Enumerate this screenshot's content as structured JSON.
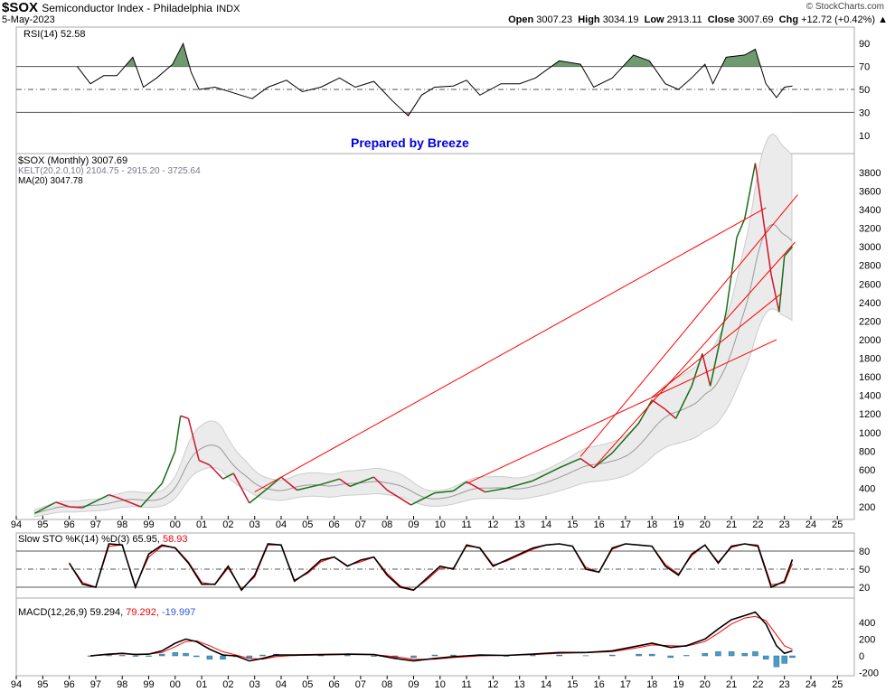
{
  "header": {
    "symbol": "$SOX",
    "name": "Semiconductor Index - Philadelphia",
    "exchange": "INDX",
    "date": "5-May-2023",
    "copyright": "© StockCharts.com",
    "ohlc": {
      "open_label": "Open",
      "open": "3007.23",
      "high_label": "High",
      "high": "3034.19",
      "low_label": "Low",
      "low": "2913.11",
      "close_label": "Close",
      "close": "3007.69",
      "chg_label": "Chg",
      "chg": "+12.72 (+0.42%) ▲"
    }
  },
  "watermark": "Prepared by Breeze",
  "colors": {
    "up": "#1a6e1a",
    "down": "#d0142c",
    "trend": "#ff0000",
    "fill_ob": "#6f9a6f",
    "fill_os": "#b08a8a",
    "band": "#ebebeb",
    "hist": "#4a9cc8"
  },
  "chart_data": [
    {
      "type": "line",
      "panel": "rsi",
      "legend": "RSI(14) 52.58",
      "ylim": [
        0,
        100
      ],
      "yticks": [
        90,
        70,
        50,
        30,
        10
      ],
      "levels": [
        70,
        50,
        30
      ],
      "x": [
        1996.3,
        1996.8,
        1997.3,
        1997.8,
        1998.4,
        1998.8,
        1999.3,
        1999.9,
        2000.3,
        2000.6,
        2000.9,
        2001.5,
        2002.2,
        2002.9,
        2003.5,
        2004.2,
        2004.8,
        2005.5,
        2006.2,
        2006.8,
        2007.5,
        2008.2,
        2008.8,
        2009.3,
        2009.8,
        2010.5,
        2011.0,
        2011.5,
        2012.3,
        2013.0,
        2013.6,
        2014.5,
        2015.3,
        2015.8,
        2016.5,
        2017.3,
        2017.9,
        2018.5,
        2019.0,
        2019.5,
        2020.0,
        2020.3,
        2020.8,
        2021.5,
        2021.9,
        2022.3,
        2022.7,
        2023.0,
        2023.3
      ],
      "y": [
        70,
        55,
        62,
        62,
        78,
        52,
        60,
        72,
        90,
        65,
        50,
        52,
        47,
        42,
        52,
        58,
        48,
        52,
        60,
        52,
        57,
        40,
        27,
        45,
        52,
        53,
        58,
        45,
        55,
        55,
        60,
        75,
        72,
        52,
        60,
        80,
        75,
        55,
        50,
        60,
        72,
        55,
        78,
        80,
        85,
        55,
        43,
        52,
        53
      ]
    },
    {
      "type": "line",
      "panel": "price",
      "legend": [
        "$SOX (Monthly) 3007.69",
        "KELT(20,2.0,10) 2104.75 - 2915.20 - 3725.64",
        "MA(20) 3047.78"
      ],
      "ylim": [
        0,
        4000
      ],
      "yticks": [
        3800,
        3600,
        3400,
        3200,
        3000,
        2800,
        2600,
        2400,
        2200,
        2000,
        1800,
        1600,
        1400,
        1200,
        1000,
        800,
        600,
        400,
        200
      ],
      "x": [
        1994.7,
        1995.5,
        1996.0,
        1996.5,
        1997.5,
        1998.0,
        1998.7,
        1999.5,
        2000.0,
        2000.2,
        2000.5,
        2000.9,
        2001.3,
        2001.8,
        2002.2,
        2002.8,
        2003.5,
        2004.0,
        2004.6,
        2005.5,
        2006.2,
        2006.6,
        2007.5,
        2008.0,
        2008.9,
        2009.8,
        2010.5,
        2011.0,
        2011.7,
        2012.5,
        2013.5,
        2014.5,
        2015.3,
        2015.8,
        2016.5,
        2017.5,
        2018.0,
        2018.5,
        2018.9,
        2019.5,
        2019.9,
        2020.2,
        2020.8,
        2021.2,
        2021.5,
        2021.9,
        2022.2,
        2022.5,
        2022.8,
        2023.0,
        2023.3
      ],
      "y": [
        130,
        250,
        200,
        190,
        330,
        280,
        200,
        450,
        800,
        1180,
        1150,
        700,
        650,
        500,
        560,
        240,
        400,
        520,
        380,
        440,
        500,
        420,
        520,
        380,
        220,
        350,
        370,
        470,
        360,
        400,
        480,
        620,
        720,
        620,
        780,
        1100,
        1350,
        1250,
        1150,
        1500,
        1850,
        1500,
        2300,
        3100,
        3300,
        3900,
        3300,
        2700,
        2300,
        2900,
        3000
      ],
      "trendlines": [
        [
          2003.0,
          360,
          2022.3,
          3420
        ],
        [
          2011.0,
          450,
          2022.7,
          2000
        ],
        [
          2015.3,
          740,
          2023.5,
          3560
        ],
        [
          2015.8,
          620,
          2023.4,
          3050
        ],
        [
          2018.0,
          1380,
          2022.9,
          2500
        ]
      ]
    },
    {
      "type": "line",
      "panel": "sto",
      "legend": "Slow STO %K(14) %D(3) 65.95, 58.93",
      "legend_k": "Slow STO %K(14) %D(3) 65.95,",
      "legend_d": "58.93",
      "ylim": [
        0,
        100
      ],
      "yticks": [
        80,
        50,
        20
      ],
      "levels": [
        80,
        50,
        20
      ],
      "x": [
        1996.0,
        1996.5,
        1997.0,
        1997.5,
        1998.0,
        1998.5,
        1999.0,
        1999.5,
        2000.0,
        2000.5,
        2001.0,
        2001.5,
        2002.0,
        2002.5,
        2003.0,
        2003.5,
        2004.0,
        2004.5,
        2005.0,
        2005.5,
        2006.0,
        2006.5,
        2007.0,
        2007.5,
        2008.0,
        2008.5,
        2009.0,
        2009.5,
        2010.0,
        2010.5,
        2011.0,
        2011.5,
        2012.0,
        2012.5,
        2013.0,
        2013.5,
        2014.0,
        2014.5,
        2015.0,
        2015.5,
        2016.0,
        2016.5,
        2017.0,
        2017.5,
        2018.0,
        2018.5,
        2019.0,
        2019.5,
        2020.0,
        2020.5,
        2021.0,
        2021.5,
        2022.0,
        2022.5,
        2023.0,
        2023.3
      ],
      "k": [
        60,
        25,
        20,
        92,
        90,
        20,
        75,
        90,
        85,
        60,
        25,
        25,
        55,
        15,
        40,
        92,
        90,
        30,
        45,
        65,
        70,
        55,
        65,
        70,
        40,
        20,
        15,
        35,
        55,
        50,
        90,
        85,
        55,
        65,
        75,
        85,
        90,
        92,
        88,
        50,
        45,
        85,
        92,
        90,
        88,
        55,
        40,
        75,
        90,
        60,
        88,
        92,
        88,
        20,
        30,
        66
      ],
      "d": [
        60,
        28,
        20,
        88,
        90,
        22,
        70,
        88,
        86,
        62,
        28,
        24,
        52,
        17,
        37,
        90,
        90,
        32,
        43,
        62,
        70,
        56,
        62,
        70,
        43,
        22,
        16,
        32,
        52,
        52,
        88,
        86,
        57,
        63,
        73,
        83,
        90,
        92,
        88,
        53,
        45,
        83,
        92,
        90,
        88,
        58,
        42,
        72,
        90,
        62,
        86,
        92,
        90,
        24,
        27,
        59
      ]
    },
    {
      "type": "line",
      "panel": "macd",
      "legend_macd": "MACD(12,26,9) 59.294,",
      "legend_signal": "79.292,",
      "legend_hist": "-19.997",
      "ylim": [
        -250,
        600
      ],
      "yticks": [
        400,
        200,
        0,
        -200
      ],
      "x": [
        1996.8,
        1997.5,
        1998.0,
        1998.5,
        1999.0,
        1999.5,
        2000.0,
        2000.4,
        2000.8,
        2001.3,
        2001.8,
        2002.3,
        2002.8,
        2003.3,
        2003.8,
        2004.5,
        2005.5,
        2006.5,
        2007.5,
        2008.3,
        2009.0,
        2009.8,
        2010.5,
        2011.5,
        2012.5,
        2013.5,
        2014.5,
        2015.5,
        2016.5,
        2017.5,
        2018.0,
        2018.7,
        2019.3,
        2020.0,
        2020.5,
        2021.0,
        2021.5,
        2021.9,
        2022.3,
        2022.7,
        2023.0,
        2023.3
      ],
      "macd": [
        0,
        20,
        30,
        15,
        20,
        60,
        150,
        200,
        170,
        80,
        10,
        0,
        -60,
        -30,
        10,
        10,
        15,
        20,
        15,
        -30,
        -60,
        -30,
        -10,
        10,
        5,
        20,
        40,
        40,
        60,
        120,
        150,
        100,
        120,
        200,
        320,
        430,
        480,
        520,
        380,
        120,
        30,
        59
      ],
      "signal": [
        0,
        15,
        25,
        20,
        20,
        40,
        110,
        170,
        180,
        120,
        50,
        10,
        -30,
        -40,
        -10,
        5,
        10,
        15,
        15,
        -10,
        -40,
        -40,
        -20,
        0,
        5,
        15,
        30,
        38,
        50,
        100,
        130,
        120,
        115,
        170,
        270,
        380,
        450,
        470,
        420,
        250,
        120,
        79
      ]
    }
  ],
  "xaxis": {
    "labels": [
      "94",
      "95",
      "96",
      "97",
      "98",
      "99",
      "00",
      "01",
      "02",
      "03",
      "04",
      "05",
      "06",
      "07",
      "08",
      "09",
      "10",
      "11",
      "12",
      "13",
      "14",
      "15",
      "16",
      "17",
      "18",
      "19",
      "20",
      "21",
      "22",
      "23",
      "24",
      "25"
    ]
  }
}
